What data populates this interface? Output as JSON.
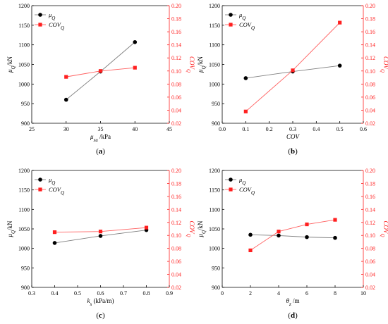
{
  "colors": {
    "left": "#000000",
    "right": "#ff2020",
    "mu_line": "#7f7f7f",
    "cov_line": "#ff6060"
  },
  "chart_data": [
    {
      "type": "line",
      "label": "(a)",
      "xlabel": {
        "main": "μ",
        "sub": "su",
        "suffix": " /kPa"
      },
      "ylabel_left": {
        "main": "μ",
        "sub": "Q",
        "suffix": "/kN"
      },
      "ylabel_right": {
        "main": "COV",
        "sub": "Q"
      },
      "xlim": [
        25,
        45
      ],
      "xticks": [
        25,
        30,
        35,
        40,
        45
      ],
      "ylim_left": [
        900,
        1200
      ],
      "yticks_left": [
        900,
        950,
        1000,
        1050,
        1100,
        1150,
        1200
      ],
      "ylim_right": [
        0.02,
        0.2
      ],
      "yticks_right": [
        "0.02",
        "0.04",
        "0.06",
        "0.08",
        "0.10",
        "0.12",
        "0.14",
        "0.16",
        "0.18",
        "0.20"
      ],
      "legend": "top-left",
      "series": [
        {
          "name": {
            "main": "μ",
            "sub": "Q"
          },
          "axis": "left",
          "marker": "circle",
          "x": [
            30,
            35,
            40
          ],
          "y": [
            960,
            1032,
            1107
          ]
        },
        {
          "name": {
            "main": "COV",
            "sub": "Q"
          },
          "axis": "right",
          "marker": "square",
          "x": [
            30,
            35,
            40
          ],
          "y": [
            0.091,
            0.1,
            0.105
          ]
        }
      ]
    },
    {
      "type": "line",
      "label": "(b)",
      "xlabel": {
        "main": "COV",
        "sub": "",
        "suffix": ""
      },
      "ylabel_left": {
        "main": "μ",
        "sub": "Q",
        "suffix": "/kN"
      },
      "ylabel_right": {
        "main": "COV",
        "sub": "Q"
      },
      "xlim": [
        0.0,
        0.6
      ],
      "xticks": [
        "0.0",
        "0.1",
        "0.2",
        "0.3",
        "0.4",
        "0.5",
        "0.6"
      ],
      "ylim_left": [
        900,
        1200
      ],
      "yticks_left": [
        900,
        950,
        1000,
        1050,
        1100,
        1150,
        1200
      ],
      "ylim_right": [
        0.02,
        0.2
      ],
      "yticks_right": [
        "0.02",
        "0.04",
        "0.06",
        "0.08",
        "0.10",
        "0.12",
        "0.14",
        "0.16",
        "0.18",
        "0.20"
      ],
      "legend": "top-left",
      "series": [
        {
          "name": {
            "main": "μ",
            "sub": "Q"
          },
          "axis": "left",
          "marker": "circle",
          "x": [
            0.1,
            0.3,
            0.5
          ],
          "y": [
            1015,
            1032,
            1047
          ]
        },
        {
          "name": {
            "main": "COV",
            "sub": "Q"
          },
          "axis": "right",
          "marker": "square",
          "x": [
            0.1,
            0.3,
            0.5
          ],
          "y": [
            0.038,
            0.101,
            0.174
          ]
        }
      ]
    },
    {
      "type": "line",
      "label": "(c)",
      "xlabel": {
        "main": "k",
        "sub": "s",
        "suffix": " (kPa/m)"
      },
      "ylabel_left": {
        "main": "μ",
        "sub": "Q",
        "suffix": "/kN"
      },
      "ylabel_right": {
        "main": "COV",
        "sub": "Q"
      },
      "xlim": [
        0.3,
        0.9
      ],
      "xticks": [
        "0.3",
        "0.4",
        "0.5",
        "0.6",
        "0.7",
        "0.8",
        "0.9"
      ],
      "ylim_left": [
        900,
        1200
      ],
      "yticks_left": [
        900,
        950,
        1000,
        1050,
        1100,
        1150,
        1200
      ],
      "ylim_right": [
        0.02,
        0.2
      ],
      "yticks_right": [
        "0.02",
        "0.04",
        "0.06",
        "0.08",
        "0.10",
        "0.12",
        "0.14",
        "0.16",
        "0.18",
        "0.20"
      ],
      "legend": "top-left",
      "series": [
        {
          "name": {
            "main": "μ",
            "sub": "Q"
          },
          "axis": "left",
          "marker": "circle",
          "x": [
            0.4,
            0.6,
            0.8
          ],
          "y": [
            1014,
            1032,
            1047
          ]
        },
        {
          "name": {
            "main": "COV",
            "sub": "Q"
          },
          "axis": "right",
          "marker": "square",
          "x": [
            0.4,
            0.6,
            0.8
          ],
          "y": [
            0.105,
            0.106,
            0.112
          ]
        }
      ]
    },
    {
      "type": "line",
      "label": "(d)",
      "xlabel": {
        "main": "θ",
        "sub": "z",
        "suffix": " /m"
      },
      "ylabel_left": {
        "main": "μ",
        "sub": "Q",
        "suffix": "/kN"
      },
      "ylabel_right": {
        "main": "COV",
        "sub": "Q"
      },
      "xlim": [
        0,
        10
      ],
      "xticks": [
        0,
        2,
        4,
        6,
        8,
        10
      ],
      "ylim_left": [
        900,
        1200
      ],
      "yticks_left": [
        900,
        950,
        1000,
        1050,
        1100,
        1150,
        1200
      ],
      "ylim_right": [
        0.02,
        0.2
      ],
      "yticks_right": [
        "0.02",
        "0.04",
        "0.06",
        "0.08",
        "0.10",
        "0.12",
        "0.14",
        "0.16",
        "0.18",
        "0.20"
      ],
      "legend": "top-left",
      "series": [
        {
          "name": {
            "main": "μ",
            "sub": "Q"
          },
          "axis": "left",
          "marker": "circle",
          "x": [
            2,
            4,
            6,
            8
          ],
          "y": [
            1035,
            1033,
            1029,
            1027
          ]
        },
        {
          "name": {
            "main": "COV",
            "sub": "Q"
          },
          "axis": "right",
          "marker": "square",
          "x": [
            2,
            4,
            6,
            8
          ],
          "y": [
            0.077,
            0.106,
            0.117,
            0.124
          ]
        }
      ]
    }
  ]
}
